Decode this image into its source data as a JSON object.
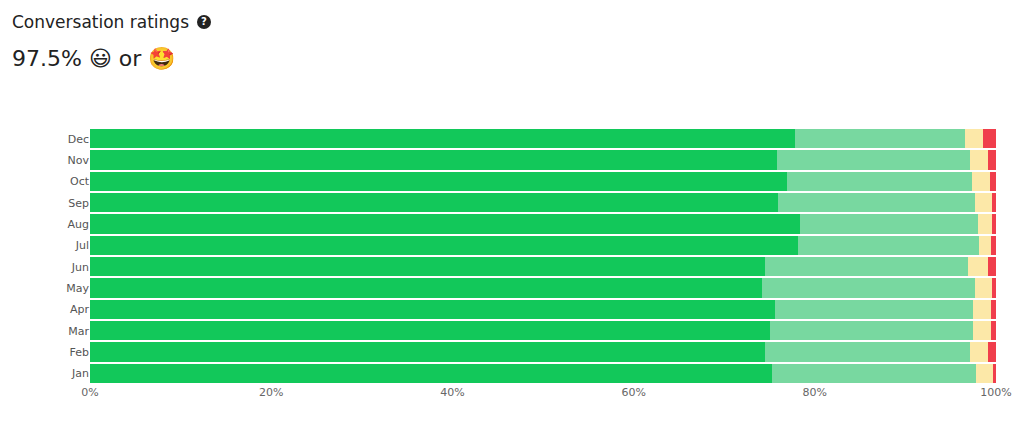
{
  "chart_data": {
    "type": "bar",
    "title": "Conversation ratings",
    "title_icon": "?",
    "subtitle": "97.5% 😃 or 🤩",
    "orientation": "horizontal",
    "stacked": true,
    "grid": false,
    "categories": [
      "Jan",
      "Feb",
      "Mar",
      "Apr",
      "May",
      "Jun",
      "Jul",
      "Aug",
      "Sep",
      "Oct",
      "Nov",
      "Dec"
    ],
    "series": [
      {
        "color": "#12c85a",
        "values": [
          75.3,
          74.5,
          75.1,
          75.6,
          74.2,
          74.5,
          78.1,
          78.4,
          75.9,
          76.9,
          75.8,
          77.8
        ]
      },
      {
        "color": "#78d8a0",
        "values": [
          22.5,
          22.6,
          22.4,
          21.9,
          23.5,
          22.4,
          20.0,
          19.6,
          21.8,
          20.4,
          21.3,
          18.8
        ]
      },
      {
        "color": "#fce8a8",
        "values": [
          1.9,
          2.0,
          1.9,
          1.9,
          1.9,
          2.2,
          1.3,
          1.6,
          1.9,
          2.0,
          2.0,
          2.0
        ]
      },
      {
        "color": "#f03e4c",
        "values": [
          0.3,
          0.9,
          0.6,
          0.6,
          0.4,
          0.9,
          0.6,
          0.4,
          0.4,
          0.7,
          0.9,
          1.4
        ]
      }
    ],
    "xlim": [
      0,
      100
    ],
    "xticks": [
      {
        "value": 0,
        "label": "0%"
      },
      {
        "value": 20,
        "label": "20%"
      },
      {
        "value": 40,
        "label": "40%"
      },
      {
        "value": 60,
        "label": "60%"
      },
      {
        "value": 80,
        "label": "80%"
      },
      {
        "value": 100,
        "label": "100%"
      }
    ]
  }
}
